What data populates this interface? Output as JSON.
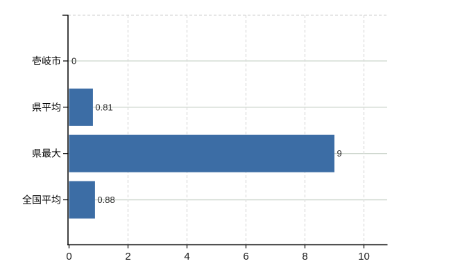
{
  "chart_data": {
    "type": "bar",
    "orientation": "horizontal",
    "title": "",
    "categories": [
      "壱岐市",
      "県平均",
      "県最大",
      "全国平均"
    ],
    "values": [
      0,
      0.81,
      9,
      0.88
    ],
    "value_labels": [
      "0",
      "0.81",
      "9",
      "0.88"
    ],
    "xticks": [
      0,
      2,
      4,
      6,
      8,
      10
    ],
    "xtick_labels": [
      "0",
      "2",
      "4",
      "6",
      "8",
      "10"
    ],
    "xlim": [
      0,
      10.8
    ],
    "grid": {
      "horizontal": "solid",
      "vertical": "dashed",
      "top_border": "dashed"
    },
    "legend": "none",
    "colors": {
      "bar": "#3c6da5",
      "h_grid": "#ccd5cc",
      "v_grid": "#d9d9d9",
      "top_border": "#d6d6d6",
      "axis": "#000000",
      "category_text": "#000000",
      "tick_text": "#1a1a1a",
      "value_text": "#2b2b2b",
      "background": "#ffffff"
    }
  }
}
